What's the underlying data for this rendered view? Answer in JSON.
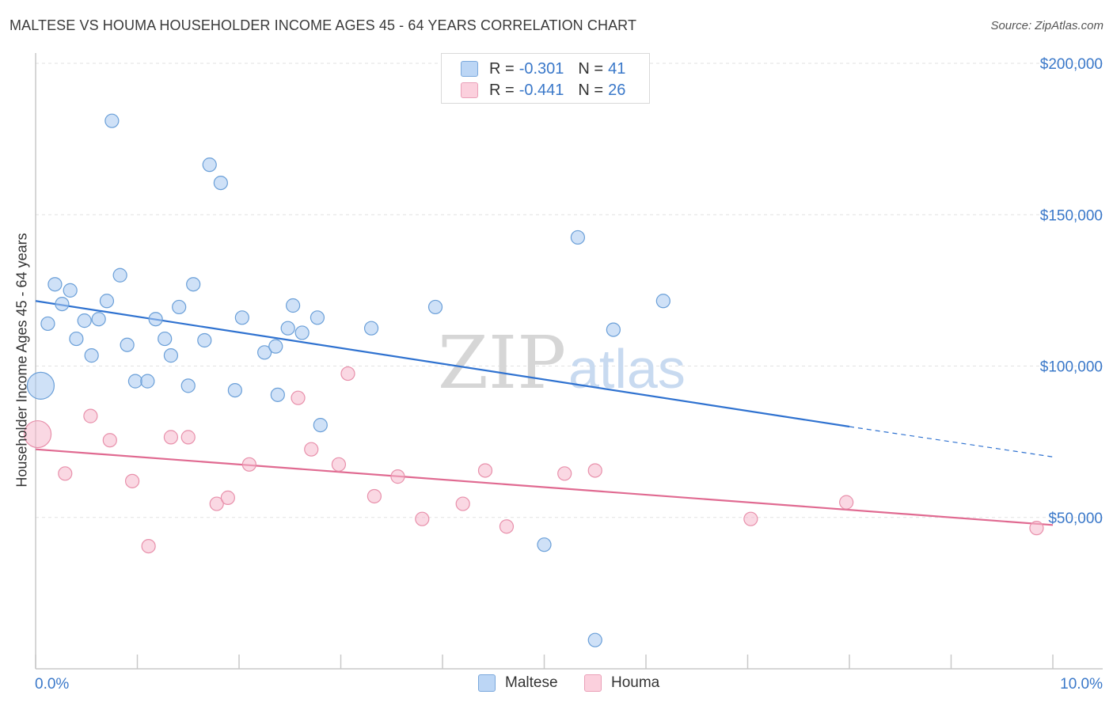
{
  "header": {
    "title": "MALTESE VS HOUMA HOUSEHOLDER INCOME AGES 45 - 64 YEARS CORRELATION CHART",
    "source": "Source: ZipAtlas.com"
  },
  "legend": {
    "maltese": {
      "r_label": "R = ",
      "r_value": "-0.301",
      "n_label": "N = ",
      "n_value": "41",
      "color": "#a8c8f0"
    },
    "houma": {
      "r_label": "R = ",
      "r_value": "-0.441",
      "n_label": "N = ",
      "n_value": "26",
      "color": "#f5b8cc"
    }
  },
  "bottom_legend": {
    "maltese": "Maltese",
    "houma": "Houma"
  },
  "watermark": {
    "zip": "ZIP",
    "atlas": "atlas"
  },
  "chart_data": {
    "type": "scatter",
    "title": "MALTESE VS HOUMA HOUSEHOLDER INCOME AGES 45 - 64 YEARS CORRELATION CHART",
    "ylabel": "Householder Income Ages 45 - 64 years",
    "xlabel": "",
    "xlim": [
      0,
      10
    ],
    "ylim": [
      0,
      200000
    ],
    "x_tick_labels": [
      "0.0%",
      "10.0%"
    ],
    "y_ticks": [
      {
        "value": 50000,
        "label": "$50,000"
      },
      {
        "value": 100000,
        "label": "$100,000"
      },
      {
        "value": 150000,
        "label": "$150,000"
      },
      {
        "value": 200000,
        "label": "$200,000"
      }
    ],
    "grid": true,
    "legend_position": "top-center",
    "series": [
      {
        "name": "Maltese",
        "color": "#a8c8f0",
        "stroke": "#6a9fd8",
        "trend": {
          "x1": 0,
          "y1": 121500,
          "x2": 8.0,
          "y2": 80000,
          "dash_to_x": 10,
          "dash_to_y": 70000,
          "color": "#2f72d0"
        },
        "points": [
          {
            "x": 0.05,
            "y": 93500,
            "big": true
          },
          {
            "x": 0.12,
            "y": 114000
          },
          {
            "x": 0.19,
            "y": 127000
          },
          {
            "x": 0.26,
            "y": 120500
          },
          {
            "x": 0.34,
            "y": 125000
          },
          {
            "x": 0.4,
            "y": 109000
          },
          {
            "x": 0.48,
            "y": 115000
          },
          {
            "x": 0.55,
            "y": 103500
          },
          {
            "x": 0.62,
            "y": 115500
          },
          {
            "x": 0.7,
            "y": 121500
          },
          {
            "x": 0.75,
            "y": 181000
          },
          {
            "x": 0.83,
            "y": 130000
          },
          {
            "x": 0.9,
            "y": 107000
          },
          {
            "x": 0.98,
            "y": 95000
          },
          {
            "x": 1.1,
            "y": 95000
          },
          {
            "x": 1.18,
            "y": 115500
          },
          {
            "x": 1.27,
            "y": 109000
          },
          {
            "x": 1.33,
            "y": 103500
          },
          {
            "x": 1.41,
            "y": 119500
          },
          {
            "x": 1.5,
            "y": 93500
          },
          {
            "x": 1.55,
            "y": 127000
          },
          {
            "x": 1.66,
            "y": 108500
          },
          {
            "x": 1.71,
            "y": 166500
          },
          {
            "x": 1.82,
            "y": 160500
          },
          {
            "x": 1.96,
            "y": 92000
          },
          {
            "x": 2.03,
            "y": 116000
          },
          {
            "x": 2.25,
            "y": 104500
          },
          {
            "x": 2.36,
            "y": 106500
          },
          {
            "x": 2.38,
            "y": 90500
          },
          {
            "x": 2.48,
            "y": 112500
          },
          {
            "x": 2.53,
            "y": 120000
          },
          {
            "x": 2.62,
            "y": 111000
          },
          {
            "x": 2.77,
            "y": 116000
          },
          {
            "x": 2.8,
            "y": 80500
          },
          {
            "x": 3.3,
            "y": 112500
          },
          {
            "x": 3.93,
            "y": 119500
          },
          {
            "x": 5.0,
            "y": 41000
          },
          {
            "x": 5.33,
            "y": 142500
          },
          {
            "x": 5.5,
            "y": 9500
          },
          {
            "x": 5.68,
            "y": 112000
          },
          {
            "x": 6.17,
            "y": 121500
          }
        ]
      },
      {
        "name": "Houma",
        "color": "#f5b8cc",
        "stroke": "#e890ab",
        "trend": {
          "x1": 0,
          "y1": 72500,
          "x2": 10,
          "y2": 47500,
          "color": "#e06a91"
        },
        "points": [
          {
            "x": 0.02,
            "y": 77500,
            "big": true
          },
          {
            "x": 0.29,
            "y": 64500
          },
          {
            "x": 0.54,
            "y": 83500
          },
          {
            "x": 0.73,
            "y": 75500
          },
          {
            "x": 0.95,
            "y": 62000
          },
          {
            "x": 1.11,
            "y": 40500
          },
          {
            "x": 1.33,
            "y": 76500
          },
          {
            "x": 1.5,
            "y": 76500
          },
          {
            "x": 1.78,
            "y": 54500
          },
          {
            "x": 1.89,
            "y": 56500
          },
          {
            "x": 2.1,
            "y": 67500
          },
          {
            "x": 2.58,
            "y": 89500
          },
          {
            "x": 2.71,
            "y": 72500
          },
          {
            "x": 2.98,
            "y": 67500
          },
          {
            "x": 3.07,
            "y": 97500
          },
          {
            "x": 3.33,
            "y": 57000
          },
          {
            "x": 3.56,
            "y": 63500
          },
          {
            "x": 3.8,
            "y": 49500
          },
          {
            "x": 4.2,
            "y": 54500
          },
          {
            "x": 4.42,
            "y": 65500
          },
          {
            "x": 4.63,
            "y": 47000
          },
          {
            "x": 5.2,
            "y": 64500
          },
          {
            "x": 5.5,
            "y": 65500
          },
          {
            "x": 7.03,
            "y": 49500
          },
          {
            "x": 7.97,
            "y": 55000
          },
          {
            "x": 9.84,
            "y": 46500
          }
        ]
      }
    ]
  }
}
